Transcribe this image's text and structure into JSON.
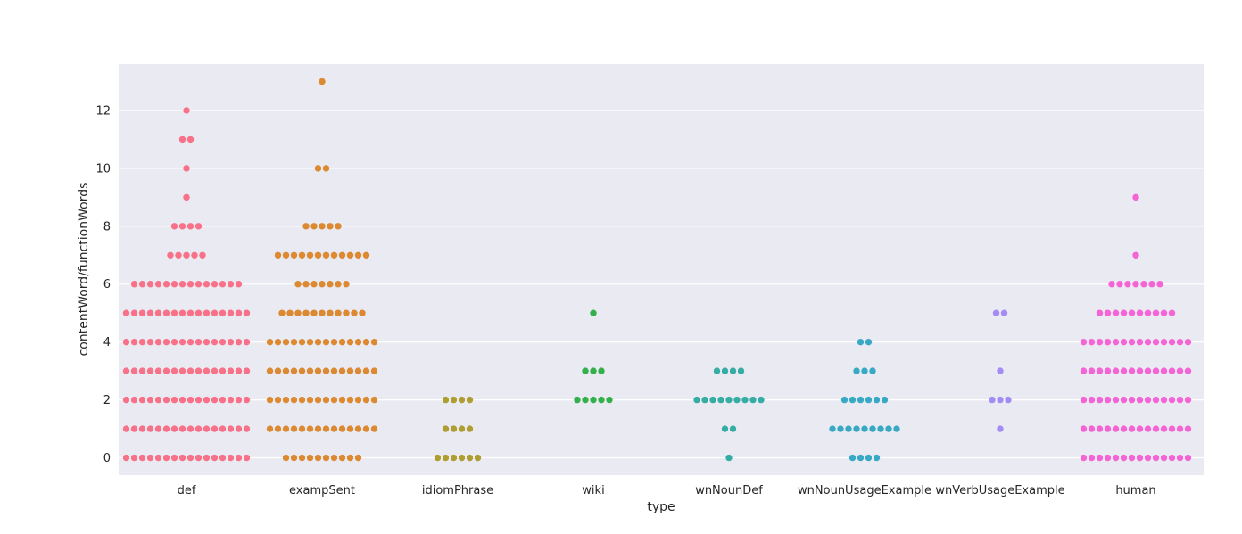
{
  "chart_data": {
    "type": "scatter",
    "subtype": "swarm",
    "xlabel": "type",
    "ylabel": "contentWord/functionWords",
    "ylim": [
      -0.6,
      13.6
    ],
    "yticks": [
      0,
      2,
      4,
      6,
      8,
      10,
      12
    ],
    "grid": true,
    "legend": "none",
    "background": "#eaeaf2",
    "categories": [
      "def",
      "exampSent",
      "idiomPhrase",
      "wiki",
      "wnNounDef",
      "wnNounUsageExample",
      "wnVerbUsageExample",
      "human"
    ],
    "colors": [
      "#f77189",
      "#dc8932",
      "#ae9d31",
      "#33b04a",
      "#36ada4",
      "#38a9c5",
      "#a48cf4",
      "#f564d4"
    ],
    "series": [
      {
        "category": "def",
        "points": [
          {
            "y": 0,
            "n": 16
          },
          {
            "y": 1,
            "n": 16
          },
          {
            "y": 2,
            "n": 16
          },
          {
            "y": 3,
            "n": 16
          },
          {
            "y": 4,
            "n": 16
          },
          {
            "y": 5,
            "n": 16
          },
          {
            "y": 6,
            "n": 14
          },
          {
            "y": 7,
            "n": 5
          },
          {
            "y": 8,
            "n": 4
          },
          {
            "y": 9,
            "n": 1
          },
          {
            "y": 10,
            "n": 1
          },
          {
            "y": 11,
            "n": 2
          },
          {
            "y": 12,
            "n": 1
          }
        ]
      },
      {
        "category": "exampSent",
        "points": [
          {
            "y": 0,
            "n": 10
          },
          {
            "y": 1,
            "n": 14
          },
          {
            "y": 2,
            "n": 14
          },
          {
            "y": 3,
            "n": 14
          },
          {
            "y": 4,
            "n": 14
          },
          {
            "y": 5,
            "n": 11
          },
          {
            "y": 6,
            "n": 7
          },
          {
            "y": 7,
            "n": 12
          },
          {
            "y": 8,
            "n": 5
          },
          {
            "y": 10,
            "n": 2
          },
          {
            "y": 13,
            "n": 1
          }
        ]
      },
      {
        "category": "idiomPhrase",
        "points": [
          {
            "y": 0,
            "n": 6
          },
          {
            "y": 1,
            "n": 4
          },
          {
            "y": 2,
            "n": 4
          }
        ]
      },
      {
        "category": "wiki",
        "points": [
          {
            "y": 2,
            "n": 5
          },
          {
            "y": 3,
            "n": 3
          },
          {
            "y": 5,
            "n": 1
          }
        ]
      },
      {
        "category": "wnNounDef",
        "points": [
          {
            "y": 0,
            "n": 1
          },
          {
            "y": 1,
            "n": 2
          },
          {
            "y": 2,
            "n": 9
          },
          {
            "y": 3,
            "n": 4
          }
        ]
      },
      {
        "category": "wnNounUsageExample",
        "points": [
          {
            "y": 0,
            "n": 4
          },
          {
            "y": 1,
            "n": 9
          },
          {
            "y": 2,
            "n": 6
          },
          {
            "y": 3,
            "n": 3
          },
          {
            "y": 4,
            "n": 2
          }
        ]
      },
      {
        "category": "wnVerbUsageExample",
        "points": [
          {
            "y": 1,
            "n": 1
          },
          {
            "y": 2,
            "n": 3
          },
          {
            "y": 3,
            "n": 1
          },
          {
            "y": 5,
            "n": 2
          }
        ]
      },
      {
        "category": "human",
        "points": [
          {
            "y": 0,
            "n": 14
          },
          {
            "y": 1,
            "n": 14
          },
          {
            "y": 2,
            "n": 14
          },
          {
            "y": 3,
            "n": 14
          },
          {
            "y": 4,
            "n": 14
          },
          {
            "y": 5,
            "n": 10
          },
          {
            "y": 6,
            "n": 7
          },
          {
            "y": 7,
            "n": 1
          },
          {
            "y": 9,
            "n": 1
          }
        ]
      }
    ]
  }
}
